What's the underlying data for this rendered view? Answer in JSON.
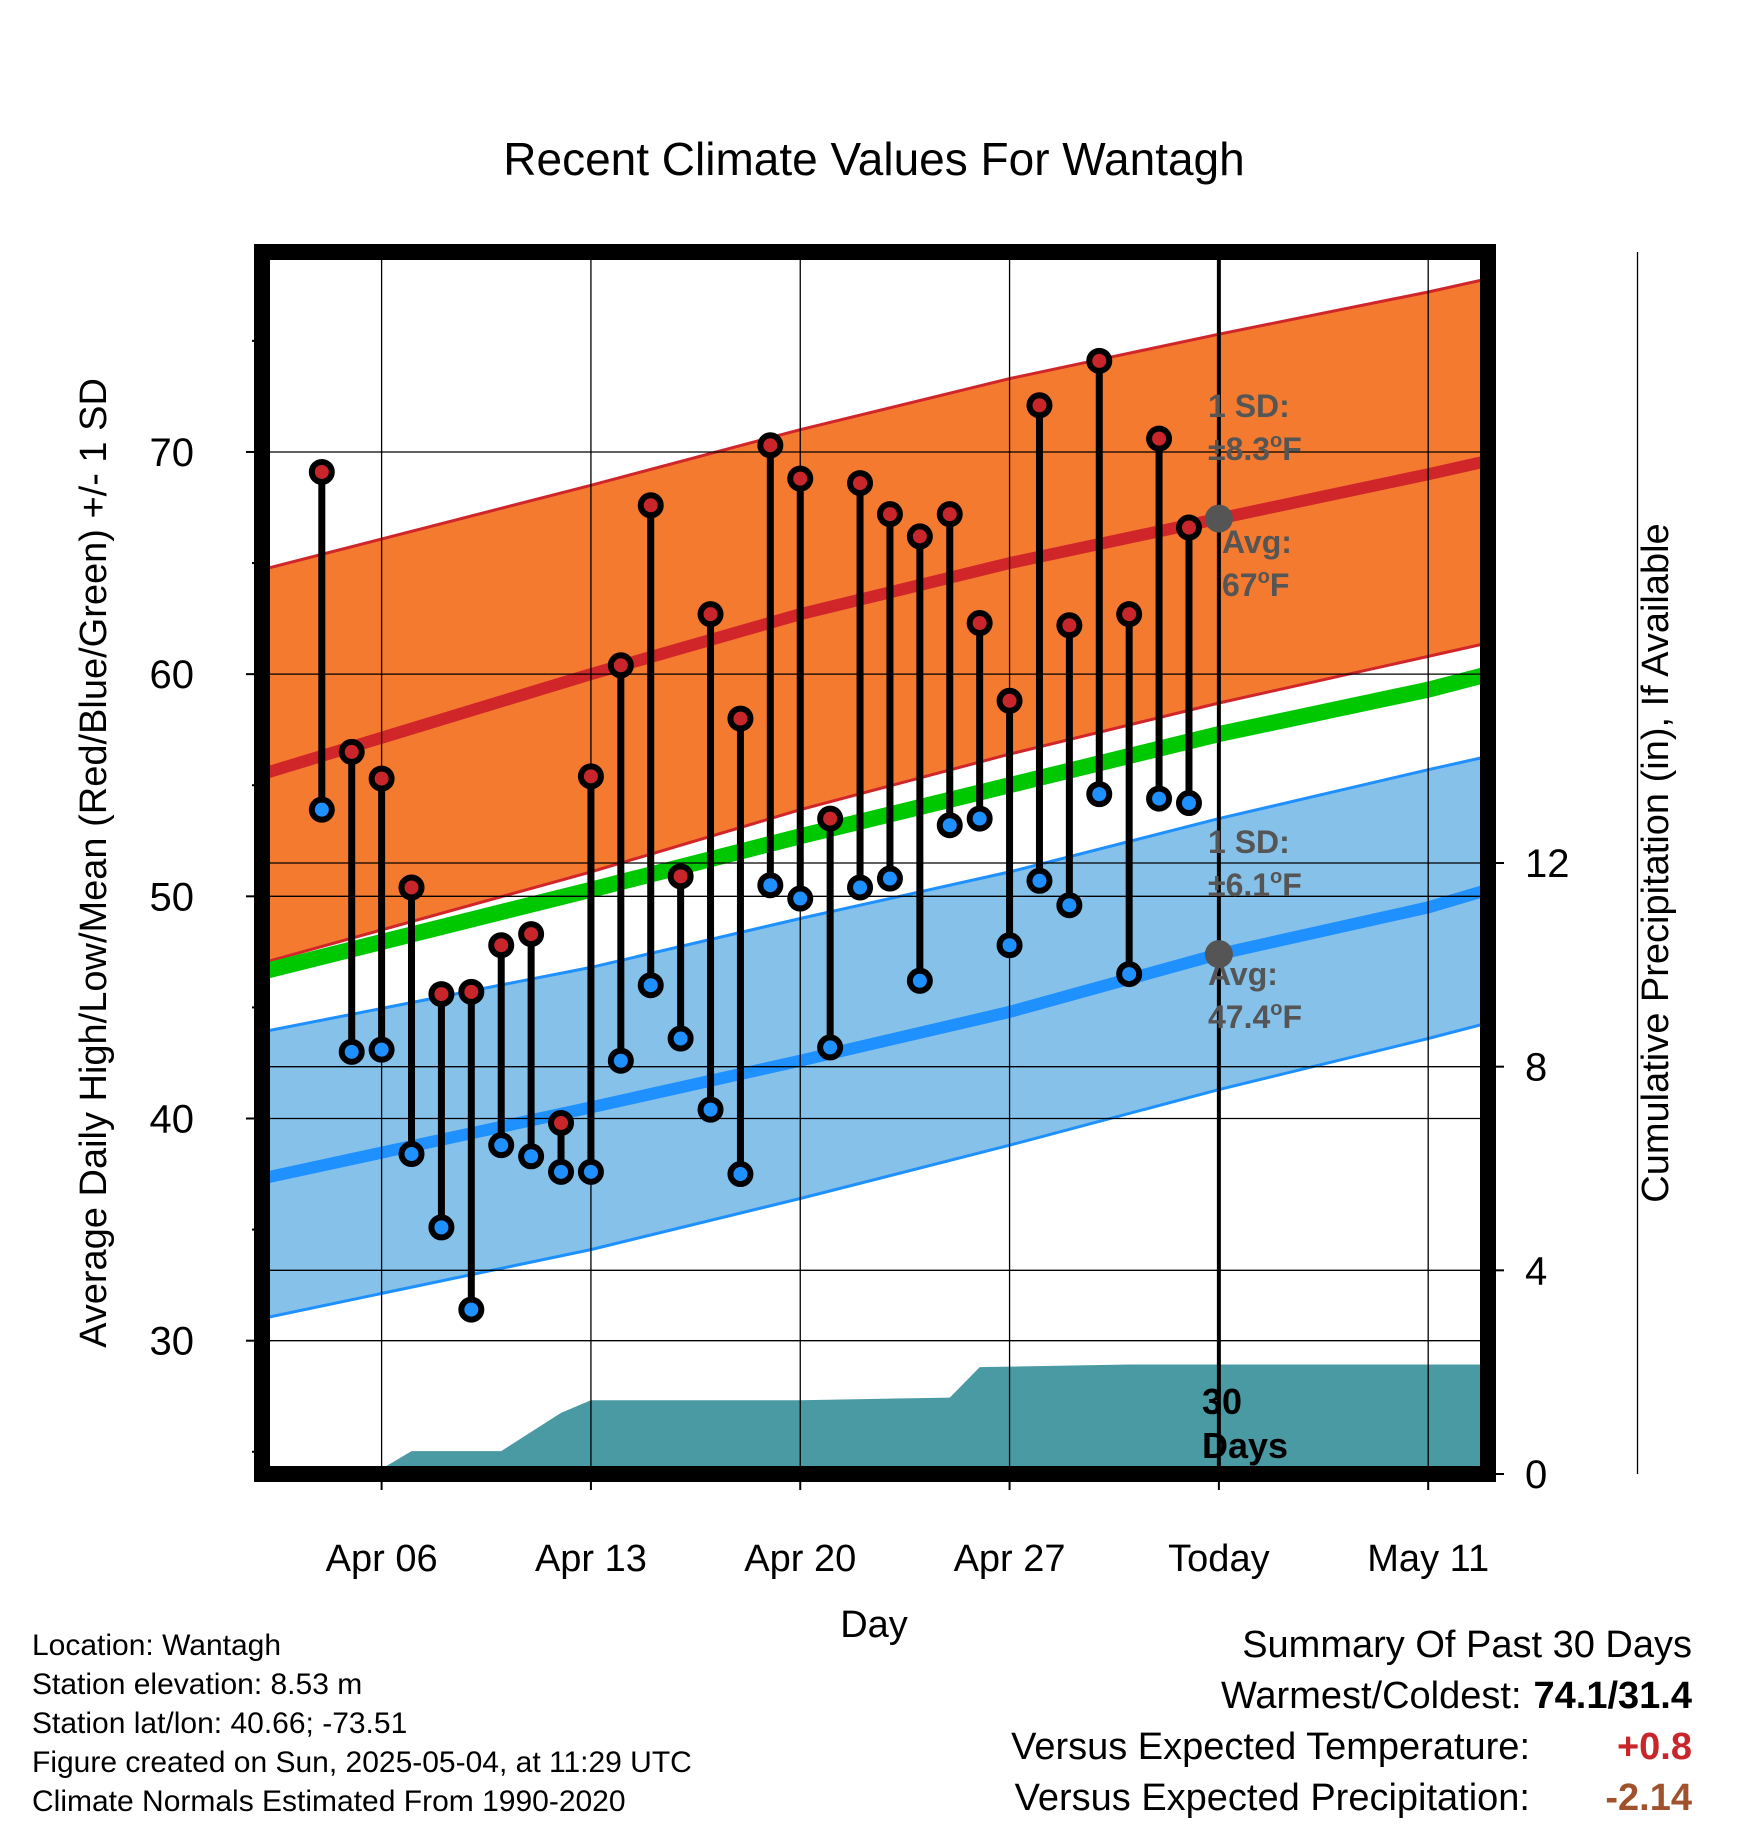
{
  "chart_data": {
    "type": "line",
    "title": "Recent Climate Values For Wantagh",
    "xlabel": "Day",
    "ylabel": "Average Daily High/Low/Mean (Red/Blue/Green) +/- 1 SD",
    "ylabel_right": "Cumulative Precipitation (in), If Available",
    "x_ticks": [
      {
        "date": "2025-04-06",
        "label": "Apr 06"
      },
      {
        "date": "2025-04-13",
        "label": "Apr 13"
      },
      {
        "date": "2025-04-20",
        "label": "Apr 20"
      },
      {
        "date": "2025-04-27",
        "label": "Apr 27"
      },
      {
        "date": "2025-05-04",
        "label": "Today"
      },
      {
        "date": "2025-05-11",
        "label": "May 11"
      }
    ],
    "xlim": [
      "2025-04-02",
      "2025-05-13"
    ],
    "ylim": [
      24,
      79
    ],
    "y_ticks": [
      30,
      40,
      50,
      60,
      70
    ],
    "y2_ticks": [
      0,
      4,
      8,
      12
    ],
    "y2lim": [
      0,
      24
    ],
    "grid": true,
    "today": "2025-05-04",
    "observed": [
      {
        "date": "2025-04-04",
        "high": 69.1,
        "low": 53.9
      },
      {
        "date": "2025-04-05",
        "high": 56.5,
        "low": 43.0
      },
      {
        "date": "2025-04-06",
        "high": 55.3,
        "low": 43.1
      },
      {
        "date": "2025-04-07",
        "high": 50.4,
        "low": 38.4
      },
      {
        "date": "2025-04-08",
        "high": 45.6,
        "low": 35.1
      },
      {
        "date": "2025-04-09",
        "high": 45.7,
        "low": 31.4
      },
      {
        "date": "2025-04-10",
        "high": 47.8,
        "low": 38.8
      },
      {
        "date": "2025-04-11",
        "high": 48.3,
        "low": 38.3
      },
      {
        "date": "2025-04-12",
        "high": 39.8,
        "low": 37.6
      },
      {
        "date": "2025-04-13",
        "high": 55.4,
        "low": 37.6
      },
      {
        "date": "2025-04-14",
        "high": 60.4,
        "low": 42.6
      },
      {
        "date": "2025-04-15",
        "high": 67.6,
        "low": 46.0
      },
      {
        "date": "2025-04-16",
        "high": 50.9,
        "low": 43.6
      },
      {
        "date": "2025-04-17",
        "high": 62.7,
        "low": 40.4
      },
      {
        "date": "2025-04-18",
        "high": 58.0,
        "low": 37.5
      },
      {
        "date": "2025-04-19",
        "high": 70.3,
        "low": 50.5
      },
      {
        "date": "2025-04-20",
        "high": 68.8,
        "low": 49.9
      },
      {
        "date": "2025-04-21",
        "high": 53.5,
        "low": 43.2
      },
      {
        "date": "2025-04-22",
        "high": 68.6,
        "low": 50.4
      },
      {
        "date": "2025-04-23",
        "high": 67.2,
        "low": 50.8
      },
      {
        "date": "2025-04-24",
        "high": 66.2,
        "low": 46.2
      },
      {
        "date": "2025-04-25",
        "high": 67.2,
        "low": 53.2
      },
      {
        "date": "2025-04-26",
        "high": 62.3,
        "low": 53.5
      },
      {
        "date": "2025-04-27",
        "high": 58.8,
        "low": 47.8
      },
      {
        "date": "2025-04-28",
        "high": 72.1,
        "low": 50.7
      },
      {
        "date": "2025-04-29",
        "high": 62.2,
        "low": 49.6
      },
      {
        "date": "2025-04-30",
        "high": 74.1,
        "low": 54.6
      },
      {
        "date": "2025-05-01",
        "high": 62.7,
        "low": 46.5
      },
      {
        "date": "2025-05-02",
        "high": 70.6,
        "low": 54.4
      },
      {
        "date": "2025-05-03",
        "high": 66.6,
        "low": 54.2
      }
    ],
    "normal_high": {
      "x": [
        "2025-04-02",
        "2025-04-13",
        "2025-04-20",
        "2025-04-27",
        "2025-05-04",
        "2025-05-11",
        "2025-05-13"
      ],
      "avg": [
        55.5,
        60.0,
        62.7,
        65.0,
        67.0,
        69.0,
        69.6
      ],
      "upper": [
        64.7,
        68.5,
        71.0,
        73.3,
        75.3,
        77.2,
        77.8
      ],
      "lower": [
        47.0,
        51.1,
        53.9,
        56.4,
        58.7,
        60.8,
        61.4
      ]
    },
    "normal_low": {
      "x": [
        "2025-04-02",
        "2025-04-13",
        "2025-04-20",
        "2025-04-27",
        "2025-05-04",
        "2025-05-11",
        "2025-05-13"
      ],
      "avg": [
        37.3,
        40.5,
        42.6,
        44.8,
        47.4,
        49.5,
        50.3
      ],
      "upper": [
        43.9,
        46.8,
        49.0,
        51.1,
        53.5,
        55.7,
        56.3
      ],
      "lower": [
        31.0,
        34.1,
        36.4,
        38.8,
        41.3,
        43.6,
        44.3
      ]
    },
    "normal_mean": {
      "x": [
        "2025-04-02",
        "2025-04-13",
        "2025-04-20",
        "2025-04-27",
        "2025-05-04",
        "2025-05-11",
        "2025-05-13"
      ],
      "avg": [
        46.6,
        50.3,
        52.7,
        55.0,
        57.3,
        59.3,
        60.0
      ]
    },
    "cumulative_precip": {
      "x": [
        "2025-04-02",
        "2025-04-05",
        "2025-04-06",
        "2025-04-07",
        "2025-04-10",
        "2025-04-12",
        "2025-04-13",
        "2025-04-20",
        "2025-04-25",
        "2025-04-26",
        "2025-05-01",
        "2025-05-13"
      ],
      "values": [
        0,
        0,
        0.1,
        0.45,
        0.45,
        1.2,
        1.45,
        1.45,
        1.5,
        2.1,
        2.15,
        2.15
      ]
    },
    "annotations": {
      "high_sd_label": "1 SD:",
      "high_sd_value": "±8.3",
      "high_avg_label": "Avg:",
      "high_avg_value": "67",
      "low_sd_label": "1 SD:",
      "low_sd_value": "±6.1",
      "low_avg_label": "Avg:",
      "low_avg_value": "47.4",
      "degree_o": "o",
      "unit_F": "F",
      "period_number": "30",
      "period_unit": "Days"
    },
    "colors": {
      "high_band": "#f47a30",
      "high_line": "#d0262a",
      "low_band": "#85c1e9",
      "low_line": "#1e90ff",
      "mean_line": "#00c800",
      "precip_fill": "#4a9aa3",
      "high_marker": "#c8262b",
      "low_marker": "#1e90ff",
      "today_marker": "#555555",
      "annotation_text": "#555555"
    }
  },
  "footer": {
    "location": "Location: Wantagh",
    "elevation": "Station elevation: 8.53 m",
    "latlon": "Station lat/lon: 40.66; -73.51",
    "created": "Figure created on Sun, 2025-05-04, at 11:29 UTC",
    "normals": "Climate Normals Estimated From 1990-2020"
  },
  "summary": {
    "title": "Summary Of Past 30 Days",
    "warmest_coldest_label": "Warmest/Coldest:",
    "warmest_coldest_value": "74.1/31.4",
    "temp_label": "Versus Expected Temperature:",
    "temp_value": "+0.8",
    "precip_label": "Versus Expected Precipitation:",
    "precip_value": "-2.14"
  }
}
